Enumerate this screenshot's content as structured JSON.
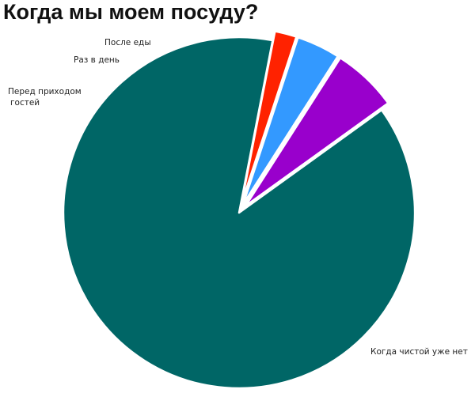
{
  "chart_data": {
    "type": "pie",
    "title": "Когда мы моем посуду?",
    "slices": [
      {
        "label": "После еды",
        "value": 2,
        "color": "#ff2200"
      },
      {
        "label": "Раз в день",
        "value": 4,
        "color": "#3399ff"
      },
      {
        "label": "Перед приходом гостей",
        "label_lines": [
          "Перед приходом",
          "гостей"
        ],
        "value": 6,
        "color": "#9900cc"
      },
      {
        "label": "Когда чистой уже нет",
        "value": 88,
        "color": "#006666"
      }
    ],
    "legend": "none",
    "labels": "outside"
  }
}
